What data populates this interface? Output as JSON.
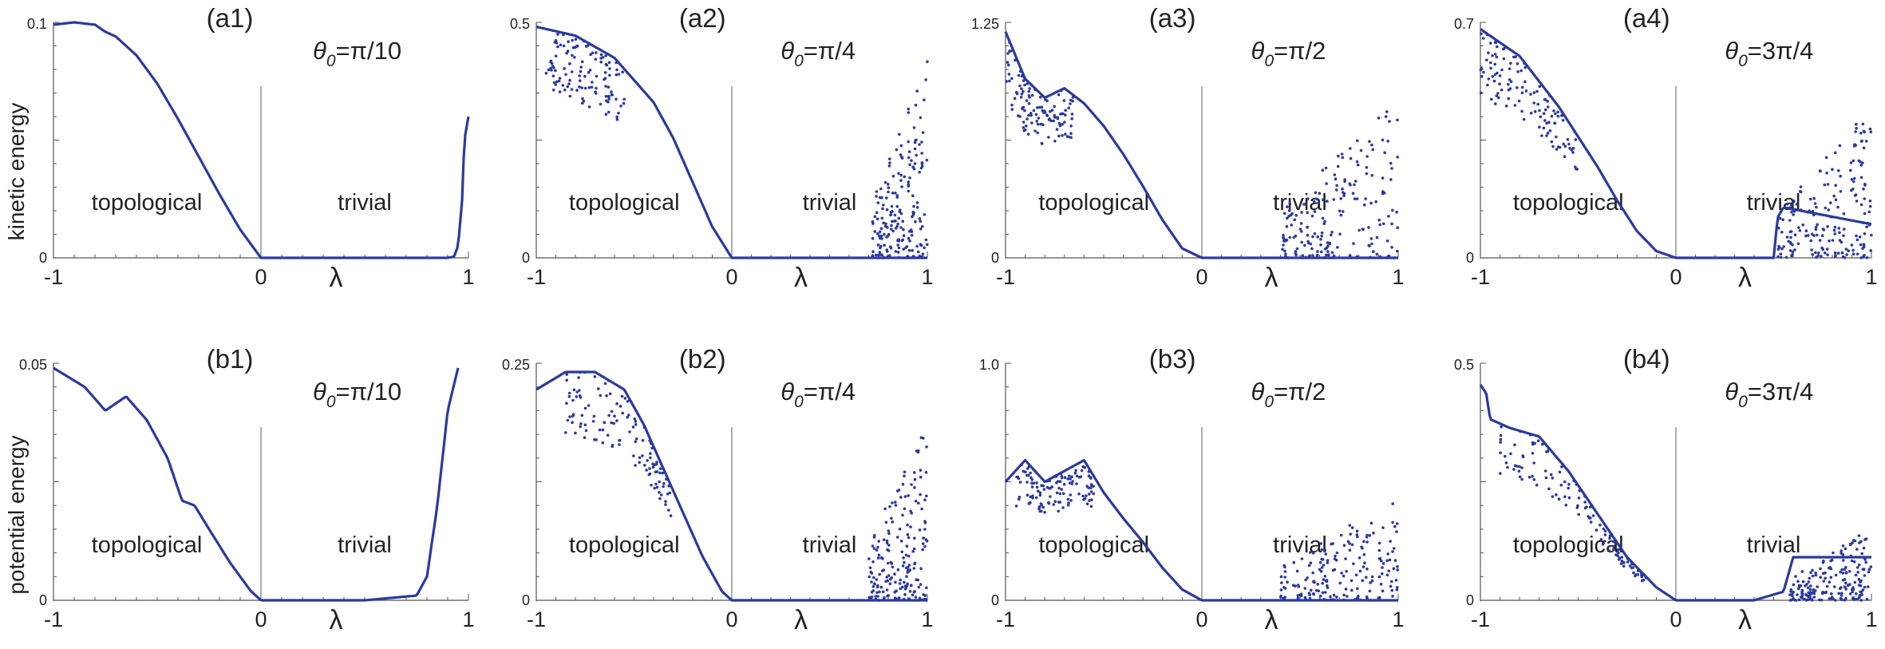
{
  "figure": {
    "row_labels": [
      "kinetic energy",
      "potential energy"
    ],
    "region_labels": {
      "left": "topological",
      "right": "trivial"
    },
    "x_symbol": "λ",
    "x_ticks": [
      "-1",
      "0",
      "1"
    ],
    "colors": {
      "data": "#2b3a9c",
      "axis": "#555555",
      "divider": "#777777",
      "text": "#222222"
    }
  },
  "chart_data": [
    {
      "type": "scatter",
      "id": "a1",
      "label": "(a1)",
      "theta": {
        "prefix": "θ",
        "sub": "0",
        "value": "=π/10"
      },
      "ylabel": "kinetic energy",
      "xlabel": "λ",
      "xlim": [
        -1,
        1
      ],
      "ylim": [
        0,
        0.1
      ],
      "ytick_labels": [
        "0.1",
        "0"
      ],
      "series": [
        {
          "name": "smooth",
          "x": [
            -1,
            -0.9,
            -0.8,
            -0.75,
            -0.7,
            -0.6,
            -0.5,
            -0.4,
            -0.3,
            -0.2,
            -0.1,
            0,
            0.2,
            0.5,
            0.8,
            0.9,
            0.93,
            0.95,
            0.97,
            0.98,
            1.0
          ],
          "y": [
            0.099,
            0.1,
            0.099,
            0.096,
            0.094,
            0.086,
            0.074,
            0.059,
            0.043,
            0.027,
            0.012,
            0,
            0,
            0,
            0,
            0,
            0.0005,
            0.005,
            0.025,
            0.05,
            0.06
          ]
        }
      ]
    },
    {
      "type": "scatter",
      "id": "a2",
      "label": "(a2)",
      "theta": {
        "prefix": "θ",
        "sub": "0",
        "value": "=π/4"
      },
      "ylabel": "kinetic energy",
      "xlabel": "λ",
      "xlim": [
        -1,
        1
      ],
      "ylim": [
        0,
        0.53
      ],
      "ytick_labels": [
        "0.5",
        "0"
      ],
      "series": [
        {
          "name": "smooth",
          "x": [
            -1,
            -0.8,
            -0.6,
            -0.4,
            -0.3,
            -0.2,
            -0.1,
            0,
            0.2,
            0.5,
            0.7,
            1.0
          ],
          "y": [
            0.52,
            0.5,
            0.45,
            0.35,
            0.27,
            0.17,
            0.07,
            0,
            0,
            0,
            0,
            0
          ]
        }
      ],
      "noise": {
        "band": [
          -0.95,
          -0.55
        ],
        "chaos": [
          0.72,
          1.0
        ],
        "chaos_max": 0.45
      }
    },
    {
      "type": "scatter",
      "id": "a3",
      "label": "(a3)",
      "theta": {
        "prefix": "θ",
        "sub": "0",
        "value": "=π/2"
      },
      "ylabel": "kinetic energy",
      "xlabel": "λ",
      "xlim": [
        -1,
        1
      ],
      "ylim": [
        0,
        1.25
      ],
      "ytick_labels": [
        "1.25",
        "0"
      ],
      "series": [
        {
          "name": "smooth",
          "x": [
            -1,
            -0.9,
            -0.8,
            -0.7,
            -0.6,
            -0.5,
            -0.4,
            -0.3,
            -0.2,
            -0.1,
            0,
            0.3,
            0.6,
            1.0
          ],
          "y": [
            1.2,
            0.95,
            0.85,
            0.9,
            0.82,
            0.7,
            0.55,
            0.38,
            0.2,
            0.05,
            0,
            0,
            0,
            0
          ]
        }
      ],
      "noise": {
        "band": [
          -1.0,
          -0.65
        ],
        "chaos": [
          0.4,
          1.0
        ],
        "chaos_max": 0.85
      }
    },
    {
      "type": "scatter",
      "id": "a4",
      "label": "(a4)",
      "theta": {
        "prefix": "θ",
        "sub": "0",
        "value": "=3π/4"
      },
      "ylabel": "kinetic energy",
      "xlabel": "λ",
      "xlim": [
        -1,
        1
      ],
      "ylim": [
        0,
        0.7
      ],
      "ytick_labels": [
        "0.7",
        "0"
      ],
      "series": [
        {
          "name": "smooth",
          "x": [
            -1,
            -0.8,
            -0.6,
            -0.4,
            -0.3,
            -0.2,
            -0.1,
            0,
            0.3,
            0.5,
            0.52,
            0.55,
            1.0
          ],
          "y": [
            0.68,
            0.6,
            0.45,
            0.27,
            0.17,
            0.08,
            0.02,
            0,
            0,
            0,
            0.12,
            0.15,
            0.1
          ]
        }
      ],
      "noise": {
        "band": [
          -1.0,
          -0.5
        ],
        "chaos": [
          0.52,
          1.0
        ],
        "chaos_max": 0.45
      }
    },
    {
      "type": "scatter",
      "id": "b1",
      "label": "(b1)",
      "theta": {
        "prefix": "θ",
        "sub": "0",
        "value": "=π/10"
      },
      "ylabel": "potential energy",
      "xlabel": "λ",
      "xlim": [
        -1,
        1
      ],
      "ylim": [
        0,
        0.05
      ],
      "ytick_labels": [
        "0.05",
        "0"
      ],
      "series": [
        {
          "name": "smooth",
          "x": [
            -1,
            -0.85,
            -0.75,
            -0.65,
            -0.55,
            -0.45,
            -0.38,
            -0.32,
            -0.25,
            -0.15,
            -0.05,
            0,
            0.5,
            0.75,
            0.8,
            0.85,
            0.9,
            0.95
          ],
          "y": [
            0.049,
            0.045,
            0.04,
            0.043,
            0.038,
            0.03,
            0.021,
            0.02,
            0.015,
            0.008,
            0.002,
            0,
            0,
            0.001,
            0.005,
            0.02,
            0.04,
            0.049
          ]
        }
      ]
    },
    {
      "type": "scatter",
      "id": "b2",
      "label": "(b2)",
      "theta": {
        "prefix": "θ",
        "sub": "0",
        "value": "=π/4"
      },
      "ylabel": "potential energy",
      "xlabel": "λ",
      "xlim": [
        -1,
        1
      ],
      "ylim": [
        0,
        0.27
      ],
      "ytick_labels": [
        "0.25",
        "0"
      ],
      "series": [
        {
          "name": "smooth",
          "x": [
            -1,
            -0.85,
            -0.7,
            -0.55,
            -0.45,
            -0.35,
            -0.25,
            -0.15,
            -0.05,
            0,
            0.5,
            1.0
          ],
          "y": [
            0.24,
            0.26,
            0.26,
            0.24,
            0.2,
            0.15,
            0.1,
            0.05,
            0.01,
            0,
            0,
            0
          ]
        }
      ],
      "noise": {
        "band": [
          -0.85,
          -0.3
        ],
        "chaos": [
          0.7,
          1.0
        ],
        "chaos_max": 0.21
      }
    },
    {
      "type": "scatter",
      "id": "b3",
      "label": "(b3)",
      "theta": {
        "prefix": "θ",
        "sub": "0",
        "value": "=π/2"
      },
      "ylabel": "potential energy",
      "xlabel": "λ",
      "xlim": [
        -1,
        1
      ],
      "ylim": [
        0,
        1.1
      ],
      "ytick_labels": [
        "1.0",
        "0"
      ],
      "series": [
        {
          "name": "smooth",
          "x": [
            -1,
            -0.9,
            -0.8,
            -0.7,
            -0.6,
            -0.5,
            -0.4,
            -0.3,
            -0.2,
            -0.1,
            0,
            0.4,
            1.0
          ],
          "y": [
            0.55,
            0.65,
            0.55,
            0.6,
            0.65,
            0.5,
            0.38,
            0.27,
            0.15,
            0.05,
            0,
            0,
            0
          ]
        }
      ],
      "noise": {
        "band": [
          -0.95,
          -0.55
        ],
        "chaos": [
          0.4,
          1.0
        ],
        "chaos_max": 0.5
      }
    },
    {
      "type": "scatter",
      "id": "b4",
      "label": "(b4)",
      "theta": {
        "prefix": "θ",
        "sub": "0",
        "value": "=3π/4"
      },
      "ylabel": "potential energy",
      "xlabel": "λ",
      "xlim": [
        -1,
        1
      ],
      "ylim": [
        0,
        0.55
      ],
      "ytick_labels": [
        "0.5",
        "0"
      ],
      "series": [
        {
          "name": "smooth",
          "x": [
            -1,
            -0.97,
            -0.95,
            -0.85,
            -0.7,
            -0.55,
            -0.4,
            -0.25,
            -0.1,
            0,
            0.4,
            0.55,
            0.6,
            1.0
          ],
          "y": [
            0.5,
            0.48,
            0.42,
            0.4,
            0.38,
            0.3,
            0.2,
            0.1,
            0.03,
            0,
            0,
            0.02,
            0.1,
            0.1
          ]
        }
      ],
      "noise": {
        "band": [
          -0.9,
          -0.15
        ],
        "chaos": [
          0.58,
          1.0
        ],
        "chaos_max": 0.17
      }
    }
  ]
}
